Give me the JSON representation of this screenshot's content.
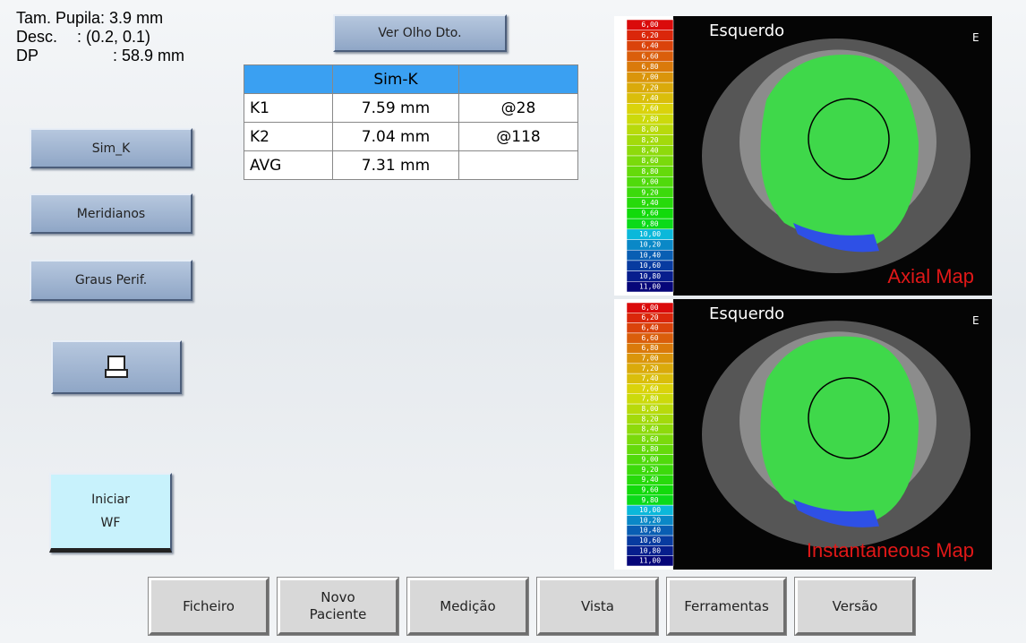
{
  "info": {
    "pupil": "Tam. Pupila: 3.9 mm",
    "desc_label": "Desc.",
    "desc_value": ": (0.2, 0.1)",
    "dp_label": "DP",
    "dp_value": ": 58.9 mm"
  },
  "top_button": "Ver Olho Dto.",
  "table": {
    "header": "Sim-K",
    "rows": [
      [
        "K1",
        "7.59 mm",
        "@28"
      ],
      [
        "K2",
        "7.04 mm",
        "@118"
      ],
      [
        "AVG",
        "7.31 mm"
      ]
    ]
  },
  "side_buttons": [
    "Sim_K",
    "Meridianos",
    "Graus Perif."
  ],
  "start_button": [
    "Iniciar",
    "WF"
  ],
  "scale": [
    "6,00",
    "6,20",
    "6,40",
    "6,60",
    "6,80",
    "7,00",
    "7,20",
    "7,40",
    "7,60",
    "7,80",
    "8,00",
    "8,20",
    "8,40",
    "8,60",
    "8,80",
    "9,00",
    "9,20",
    "9,40",
    "9,60",
    "9,80",
    "10,00",
    "10,20",
    "10,40",
    "10,60",
    "10,80",
    "11,00"
  ],
  "maps": [
    {
      "eye": "Esquerdo",
      "side": "E",
      "title": "Axial Map"
    },
    {
      "eye": "Esquerdo",
      "side": "E",
      "title": "Instantaneous Map"
    }
  ],
  "menu": [
    [
      "Ficheiro"
    ],
    [
      "Novo",
      "Paciente"
    ],
    [
      "Medição"
    ],
    [
      "Vista"
    ],
    [
      "Ferramentas"
    ],
    [
      "Versão"
    ]
  ]
}
